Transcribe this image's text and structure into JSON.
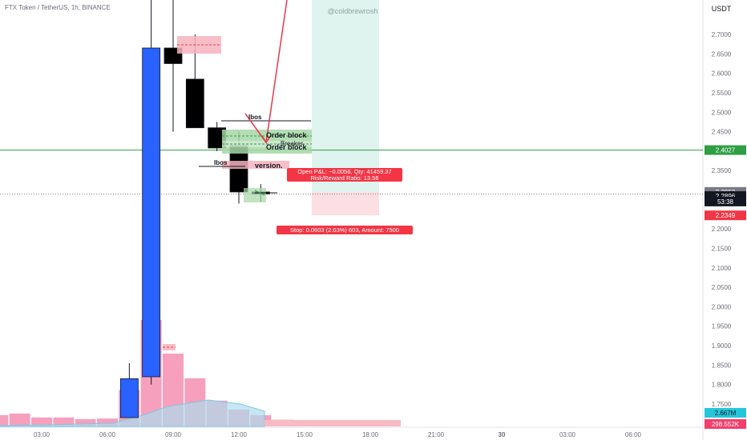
{
  "header": {
    "symbol_title": "FTX Token / TetherUS, 1h, BINANCE",
    "currency": "USDT"
  },
  "watermark": "@coldbrewrosh",
  "price_axis": {
    "ticks": [
      "2.7000",
      "2.6500",
      "2.6000",
      "2.5500",
      "2.5000",
      "2.4500",
      "2.3500",
      "2.2000",
      "2.1500",
      "2.1000",
      "2.0500",
      "2.0000",
      "1.9500",
      "1.9000",
      "1.8500",
      "1.8000",
      "1.7500"
    ],
    "tick_values": [
      2.7,
      2.65,
      2.6,
      2.55,
      2.5,
      2.45,
      2.35,
      2.2,
      2.15,
      2.1,
      2.05,
      2.0,
      1.95,
      1.9,
      1.85,
      1.8,
      1.75
    ],
    "labels": [
      {
        "text": "2.4027",
        "value": 2.4027,
        "bg": "#2f9e44",
        "fg": "#ffffff"
      },
      {
        "text": "2.2952",
        "value": 2.2952,
        "bg": "#787b86",
        "fg": "#ffffff"
      },
      {
        "text": "2.2896",
        "value": 2.2845,
        "bg": "#131722",
        "fg": "#ffffff"
      },
      {
        "text": "53:38",
        "value": 2.2705,
        "bg": "#131722",
        "fg": "#ffffff"
      },
      {
        "text": "2.2349",
        "value": 2.2349,
        "bg": "#f23645",
        "fg": "#ffffff"
      }
    ],
    "volume_labels": [
      {
        "text": "2.667M",
        "bg": "#26c6da",
        "fg": "#131722"
      },
      {
        "text": "298.552K",
        "bg": "#f23f6c",
        "fg": "#ffffff"
      }
    ]
  },
  "time_axis": {
    "ticks": [
      "03:00",
      "06:00",
      "09:00",
      "12:00",
      "15:00",
      "18:00",
      "21:00",
      "30",
      "03:00",
      "06:00"
    ],
    "bold_index": 7
  },
  "annotations": {
    "ibos_top": "Ibos",
    "ibos_left": "Ibos",
    "order_block_upper": "Order block",
    "breaker": "Breaker",
    "order_block_lower": "Order block",
    "inversion": "version.",
    "position_info_line1": "Open P&L: −0.0056, Qty: 41459.37",
    "position_info_line2": "Risk/Reward Ratio: 13.56",
    "stop_info": "Stop: 0.0603 (2.63%) 603, Amount: 7500"
  },
  "colors": {
    "bull": "#2962ff",
    "bear": "#000000",
    "green_line": "#2f9e44",
    "target_zone": "#dff3ef",
    "stop_zone": "#fbdfe3",
    "red": "#f23645",
    "volume": "#f48fb1",
    "volume_ma": "#7fc8e2"
  },
  "chart_data": {
    "type": "candlestick",
    "title": "FTX Token / TetherUS, 1h, BINANCE",
    "ylim": [
      1.7,
      2.81
    ],
    "x_labels": [
      "03:00",
      "06:00",
      "09:00",
      "12:00",
      "15:00",
      "18:00",
      "21:00",
      "30",
      "03:00",
      "06:00"
    ],
    "candles": [
      {
        "hour": 7,
        "open": 1.715,
        "high": 1.855,
        "low": 1.715,
        "close": 1.815
      },
      {
        "hour": 8,
        "open": 1.82,
        "high": 3.1,
        "low": 1.8,
        "close": 2.665
      },
      {
        "hour": 9,
        "open": 2.665,
        "high": 2.815,
        "low": 2.45,
        "close": 2.625
      },
      {
        "hour": 10,
        "open": 2.585,
        "high": 2.7,
        "low": 2.465,
        "close": 2.46
      },
      {
        "hour": 11,
        "open": 2.46,
        "high": 2.475,
        "low": 2.4,
        "close": 2.408
      },
      {
        "hour": 12,
        "open": 2.415,
        "high": 2.45,
        "low": 2.265,
        "close": 2.295
      },
      {
        "hour": 13,
        "open": 2.295,
        "high": 2.315,
        "low": 2.27,
        "close": 2.29
      }
    ],
    "volume_bars": [
      {
        "hour": 0,
        "value": 1.0
      },
      {
        "hour": 1,
        "value": 2.0
      },
      {
        "hour": 2,
        "value": 2.3
      },
      {
        "hour": 3,
        "value": 1.6
      },
      {
        "hour": 4,
        "value": 1.6
      },
      {
        "hour": 5,
        "value": 1.3
      },
      {
        "hour": 6,
        "value": 1.4
      },
      {
        "hour": 7,
        "value": 6.5
      },
      {
        "hour": 8,
        "value": 19.0
      },
      {
        "hour": 9,
        "value": 13.0
      },
      {
        "hour": 10,
        "value": 8.6
      },
      {
        "hour": 11,
        "value": 4.6
      },
      {
        "hour": 12,
        "value": 3.0
      },
      {
        "hour": 13,
        "value": 2.0
      },
      {
        "hour": 14,
        "value": 1.2
      }
    ],
    "horizontal_lines": [
      {
        "name": "support",
        "value": 2.4027,
        "style": "solid"
      },
      {
        "name": "current",
        "value": 2.2896,
        "style": "dotted"
      }
    ],
    "position": {
      "entry": 2.2952,
      "target": 2.81,
      "stop": 2.2349
    }
  }
}
